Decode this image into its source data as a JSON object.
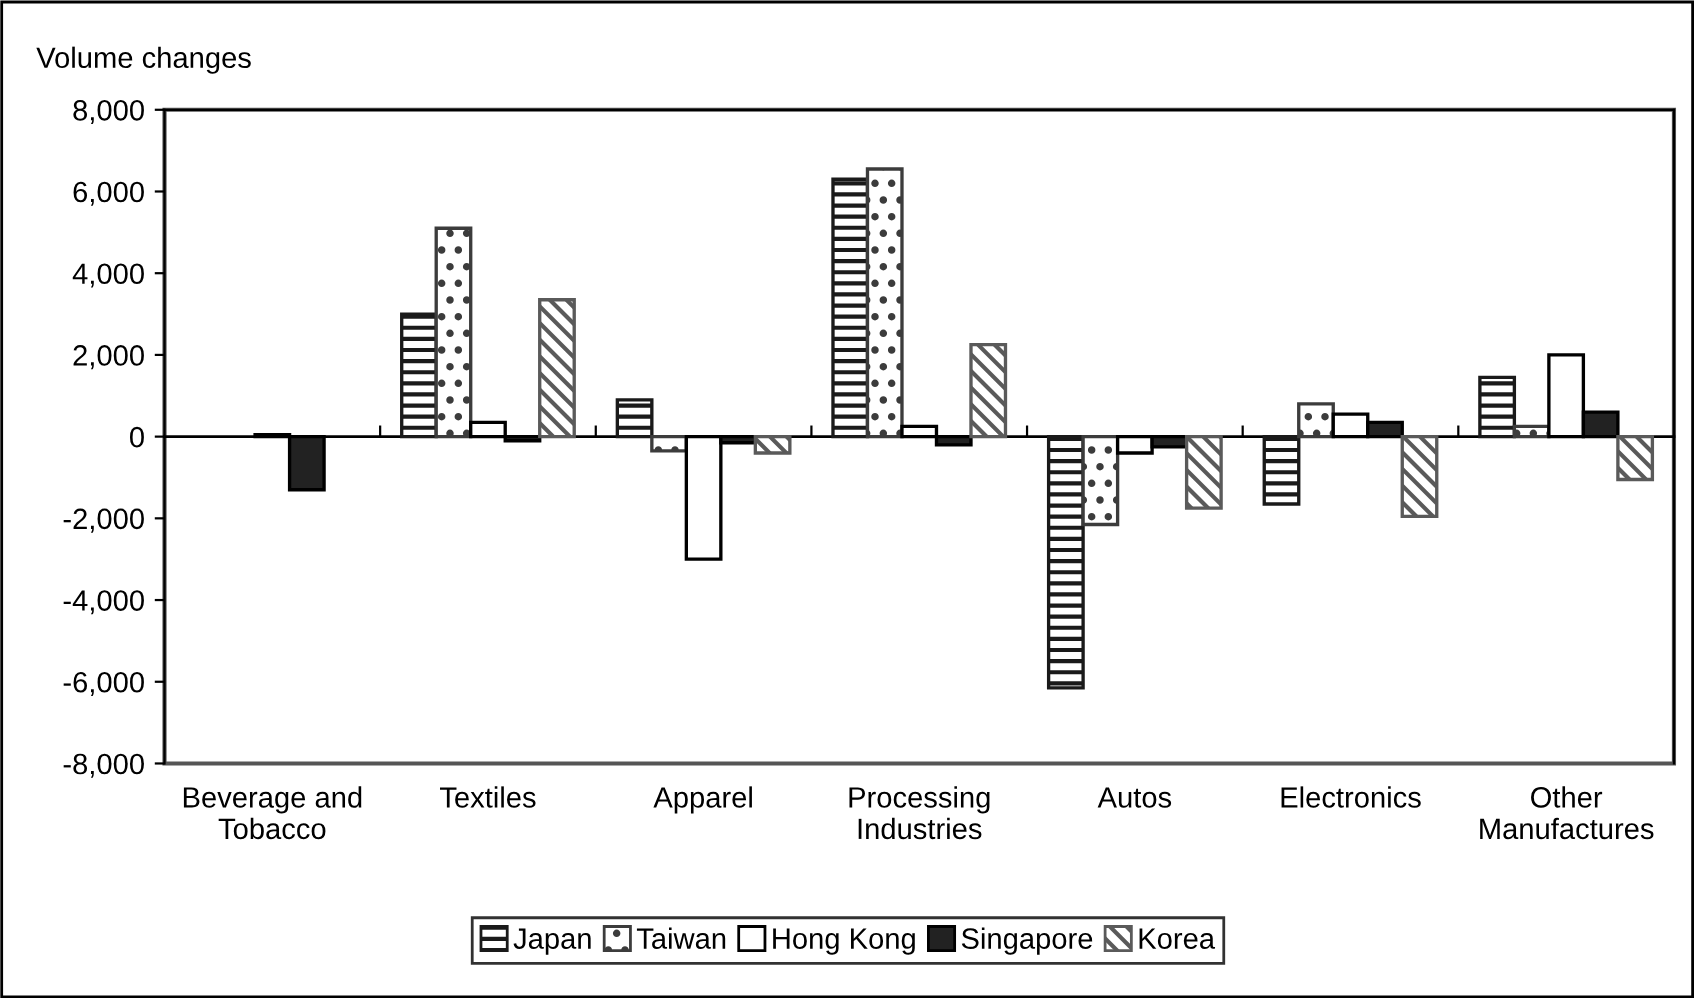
{
  "chart_data": {
    "type": "bar",
    "ylabel": "Volume changes",
    "categories": [
      "Beverage and\nTobacco",
      "Textiles",
      "Apparel",
      "Processing\nIndustries",
      "Autos",
      "Electronics",
      "Other\nManufactures"
    ],
    "series": [
      {
        "name": "Japan",
        "color": "#1a1a1a",
        "values": [
          null,
          3000,
          900,
          6300,
          -6150,
          -1650,
          1450
        ]
      },
      {
        "name": "Taiwan",
        "color": "#3c3c3c",
        "values": [
          null,
          5100,
          -350,
          6550,
          -2150,
          800,
          250
        ]
      },
      {
        "name": "Hong Kong",
        "color": "#ffffff",
        "values": [
          50,
          350,
          -3000,
          250,
          -400,
          550,
          2000
        ]
      },
      {
        "name": "Singapore",
        "color": "#222222",
        "values": [
          -1300,
          -100,
          -150,
          -200,
          -250,
          350,
          600
        ]
      },
      {
        "name": "Korea",
        "color": "#5a5a5a",
        "values": [
          null,
          3350,
          -400,
          2250,
          -1750,
          -1950,
          -1050
        ]
      }
    ],
    "ylim": [
      -8000,
      8000
    ],
    "yticks": [
      {
        "value": -8000,
        "label": "-8,000"
      },
      {
        "value": -6000,
        "label": "-6,000"
      },
      {
        "value": -4000,
        "label": "-4,000"
      },
      {
        "value": -2000,
        "label": "-2,000"
      },
      0,
      {
        "value": 2000,
        "label": "2,000"
      },
      {
        "value": 4000,
        "label": "4,000"
      },
      {
        "value": 6000,
        "label": "6,000"
      },
      {
        "value": 8000,
        "label": "8,000"
      }
    ],
    "legend": "bottom"
  }
}
